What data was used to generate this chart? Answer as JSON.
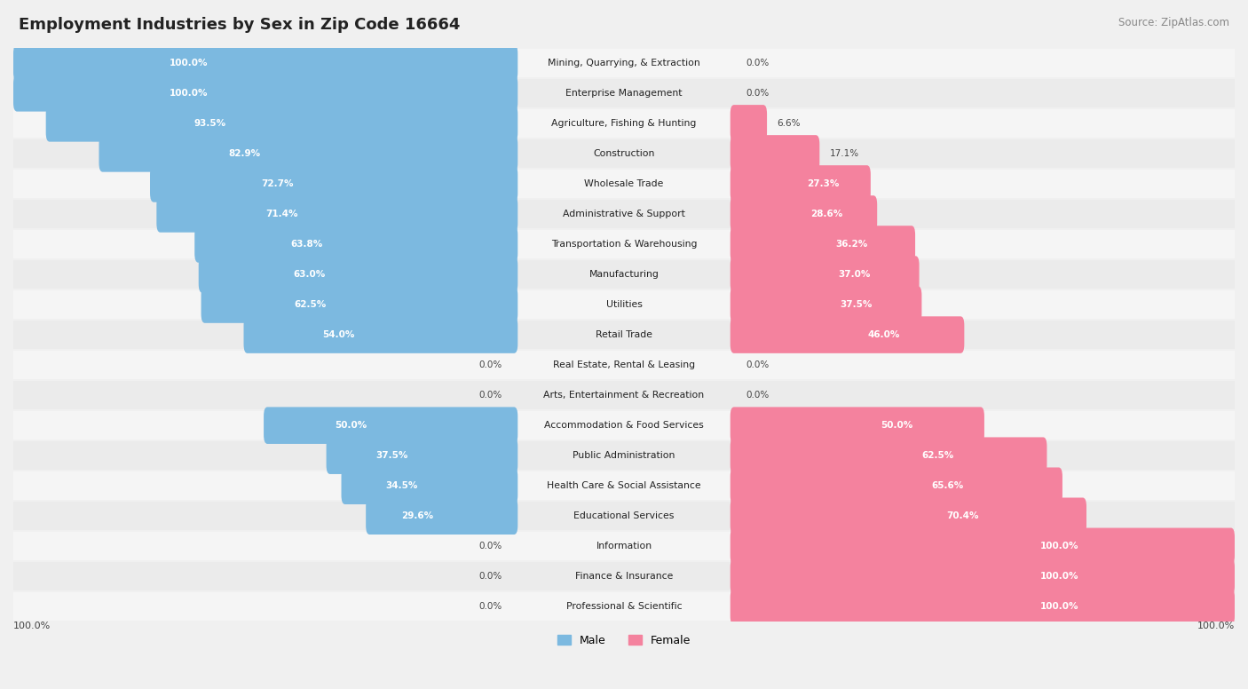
{
  "title": "Employment Industries by Sex in Zip Code 16664",
  "source": "Source: ZipAtlas.com",
  "industries": [
    "Mining, Quarrying, & Extraction",
    "Enterprise Management",
    "Agriculture, Fishing & Hunting",
    "Construction",
    "Wholesale Trade",
    "Administrative & Support",
    "Transportation & Warehousing",
    "Manufacturing",
    "Utilities",
    "Retail Trade",
    "Real Estate, Rental & Leasing",
    "Arts, Entertainment & Recreation",
    "Accommodation & Food Services",
    "Public Administration",
    "Health Care & Social Assistance",
    "Educational Services",
    "Information",
    "Finance & Insurance",
    "Professional & Scientific"
  ],
  "male_pct": [
    100.0,
    100.0,
    93.5,
    82.9,
    72.7,
    71.4,
    63.8,
    63.0,
    62.5,
    54.0,
    0.0,
    0.0,
    50.0,
    37.5,
    34.5,
    29.6,
    0.0,
    0.0,
    0.0
  ],
  "female_pct": [
    0.0,
    0.0,
    6.6,
    17.1,
    27.3,
    28.6,
    36.2,
    37.0,
    37.5,
    46.0,
    0.0,
    0.0,
    50.0,
    62.5,
    65.6,
    70.4,
    100.0,
    100.0,
    100.0
  ],
  "male_color": "#7CB9E0",
  "female_color": "#F4829E",
  "bg_color": "#F0F0F0",
  "row_color_odd": "#EBEBEB",
  "row_color_even": "#F5F5F5",
  "figsize": [
    14.06,
    7.76
  ],
  "dpi": 100
}
